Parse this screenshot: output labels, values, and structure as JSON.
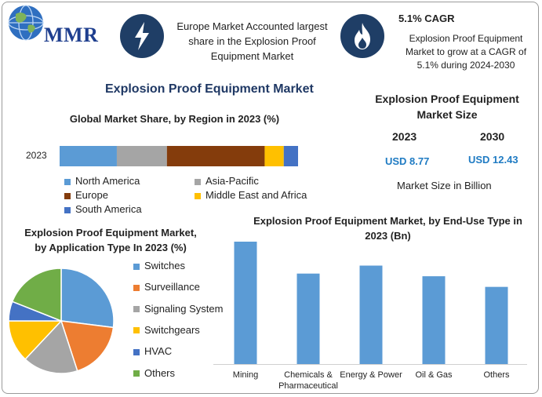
{
  "logo": {
    "text": "MMR"
  },
  "infobox1": {
    "icon": "lightning-icon",
    "text": "Europe Market Accounted largest share in the Explosion Proof Equipment Market"
  },
  "infobox2": {
    "icon": "flame-icon",
    "title": "5.1% CAGR",
    "text": "Explosion Proof Equipment Market to grow at a CAGR of 5.1% during 2024-2030"
  },
  "main_title": "Explosion Proof Equipment Market",
  "market_size": {
    "title": "Explosion Proof Equipment Market Size",
    "years": [
      "2023",
      "2030"
    ],
    "values": [
      "USD 8.77",
      "USD 12.43"
    ],
    "note": "Market Size in Billion"
  },
  "colors": {
    "north_america": "#5b9bd5",
    "asia_pacific": "#a5a5a5",
    "europe": "#843c0c",
    "mea": "#ffc000",
    "south_america": "#4472c4",
    "switches": "#5b9bd5",
    "surveillance": "#ed7d31",
    "signaling": "#a5a5a5",
    "switchgears": "#ffc000",
    "hvac": "#4472c4",
    "others": "#70ad47",
    "enduse": "#5b9bd5"
  },
  "chart_data": [
    {
      "type": "bar",
      "orientation": "horizontal-stacked",
      "title": "Global Market Share, by Region in 2023 (%)",
      "categories": [
        "2023"
      ],
      "series": [
        {
          "name": "North America",
          "values": [
            24
          ]
        },
        {
          "name": "Asia-Pacific",
          "values": [
            21
          ]
        },
        {
          "name": "Europe",
          "values": [
            41
          ]
        },
        {
          "name": "Middle East and Africa",
          "values": [
            8
          ]
        },
        {
          "name": "South America",
          "values": [
            6
          ]
        }
      ],
      "legend": "bottom"
    },
    {
      "type": "pie",
      "title": "Explosion Proof Equipment Market, by Application Type In 2023 (%)",
      "labels": [
        "Switches",
        "Surveillance",
        "Signaling System",
        "Switchgears",
        "HVAC",
        "Others"
      ],
      "values": [
        27,
        18,
        17,
        13,
        6,
        19
      ],
      "legend": "right"
    },
    {
      "type": "bar",
      "title": "Explosion Proof Equipment Market, by End-Use Type in 2023 (Bn)",
      "categories": [
        "Mining",
        "Chemicals & Pharmaceutical",
        "Energy & Power",
        "Oil & Gas",
        "Others"
      ],
      "values": [
        2.3,
        1.7,
        1.85,
        1.65,
        1.45
      ],
      "ylim": [
        0,
        2.3
      ]
    }
  ]
}
